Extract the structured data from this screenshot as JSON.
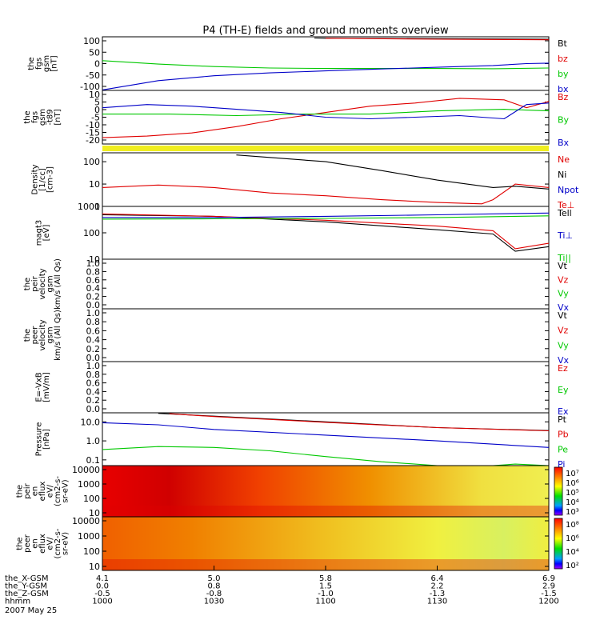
{
  "title": "P4 (TH-E) fields and ground moments overview",
  "date": "2007 May 25",
  "colors": {
    "black": "#000000",
    "red": "#e00000",
    "green": "#00c800",
    "blue": "#0000c8",
    "yellow": "#f0ee20",
    "axis": "#000000"
  },
  "chart_data": [
    {
      "type": "line",
      "panel": "fgs_gsm",
      "ylabel": [
        "the",
        "fgs",
        "gsm",
        "[nT]"
      ],
      "yticks": [
        "100",
        "50",
        "0",
        "-50",
        "-100"
      ],
      "ylim": [
        -110,
        110
      ],
      "series": [
        {
          "name": "Bt",
          "color": "black",
          "x": [
            10.95,
            11.0,
            11.5,
            12.0
          ],
          "y": [
            105,
            104,
            102,
            100
          ]
        },
        {
          "name": "bz",
          "color": "red",
          "x": [
            11.0,
            11.5,
            12.0
          ],
          "y": [
            104,
            100,
            98
          ]
        },
        {
          "name": "by",
          "color": "green",
          "x": [
            10.0,
            10.25,
            10.5,
            10.75,
            11.0,
            11.25,
            11.5,
            11.75,
            12.0
          ],
          "y": [
            12,
            -2,
            -12,
            -18,
            -20,
            -20,
            -20,
            -21,
            -18
          ]
        },
        {
          "name": "bx",
          "color": "blue",
          "x": [
            10.0,
            10.25,
            10.5,
            10.75,
            11.0,
            11.25,
            11.5,
            11.75,
            11.9,
            12.0
          ],
          "y": [
            -108,
            -70,
            -50,
            -38,
            -30,
            -22,
            -15,
            -8,
            0,
            2
          ]
        }
      ],
      "legend": [
        "Bt",
        "bz",
        "by",
        "bx"
      ]
    },
    {
      "type": "line",
      "panel": "fgs_gsm_dsl",
      "ylabel": [
        "the",
        "fgs",
        "gsm",
        "-t89",
        "[nT]"
      ],
      "yticks": [
        "10",
        "5",
        "0",
        "-5",
        "-10",
        "-15",
        "-20"
      ],
      "ylim": [
        -22,
        12
      ],
      "series": [
        {
          "name": "Bz",
          "color": "red",
          "x": [
            10.0,
            10.2,
            10.4,
            10.6,
            10.8,
            11.0,
            11.2,
            11.4,
            11.6,
            11.8,
            11.9,
            12.0
          ],
          "y": [
            -18,
            -17,
            -15,
            -11,
            -6,
            -2,
            2,
            4,
            7,
            6,
            1,
            5
          ]
        },
        {
          "name": "By",
          "color": "green",
          "x": [
            10.0,
            10.3,
            10.6,
            10.9,
            11.2,
            11.5,
            11.8,
            12.0
          ],
          "y": [
            -3,
            -3,
            -4,
            -3,
            -3,
            -1,
            0,
            -1
          ]
        },
        {
          "name": "Bx",
          "color": "blue",
          "x": [
            10.0,
            10.2,
            10.4,
            10.6,
            10.8,
            11.0,
            11.2,
            11.4,
            11.6,
            11.8,
            11.9,
            12.0
          ],
          "y": [
            1,
            3,
            2,
            0,
            -2,
            -5,
            -6,
            -5,
            -4,
            -6,
            3,
            4
          ]
        }
      ],
      "legend": [
        "Bz",
        "By",
        "Bx"
      ]
    },
    {
      "type": "line",
      "panel": "density",
      "ylabel": [
        "Density",
        "[1/cc]",
        "[cm-3]"
      ],
      "yticks": [
        "100",
        "10",
        "1"
      ],
      "ylim": [
        1,
        250
      ],
      "yscale": "log",
      "series": [
        {
          "name": "Ne",
          "color": "red",
          "x": [
            10.0,
            10.25,
            10.5,
            10.75,
            11.0,
            11.25,
            11.5,
            11.7,
            11.75,
            11.85,
            12.0
          ],
          "y": [
            7,
            9,
            7,
            4,
            3,
            2,
            1.5,
            1.3,
            2,
            10,
            7
          ]
        },
        {
          "name": "Ni",
          "color": "black",
          "x": [
            10.6,
            11.0,
            11.25,
            11.5,
            11.75,
            11.85,
            12.0
          ],
          "y": [
            200,
            100,
            40,
            15,
            7,
            8,
            6
          ]
        },
        {
          "name": "Npot",
          "color": "blue",
          "x": [],
          "y": []
        }
      ],
      "legend": [
        "Ne",
        "Ni",
        "Npot",
        "Te⊥"
      ]
    },
    {
      "type": "line",
      "panel": "temperature",
      "ylabel": [
        "magt3",
        "[eV]"
      ],
      "yticks": [
        "1000",
        "100",
        "10"
      ],
      "ylim": [
        10,
        1000
      ],
      "yscale": "log",
      "series": [
        {
          "name": "Te||",
          "color": "black",
          "x": [
            10.0,
            10.5,
            11.0,
            11.5,
            11.75,
            11.85,
            12.0
          ],
          "y": [
            480,
            420,
            260,
            130,
            90,
            20,
            30
          ]
        },
        {
          "name": "Te⊥",
          "color": "red",
          "x": [
            10.0,
            10.5,
            11.0,
            11.5,
            11.75,
            11.85,
            12.0
          ],
          "y": [
            520,
            420,
            300,
            180,
            120,
            25,
            40
          ]
        },
        {
          "name": "Ti⊥",
          "color": "blue",
          "x": [
            10.0,
            10.5,
            11.0,
            11.5,
            12.0
          ],
          "y": [
            380,
            380,
            420,
            480,
            560
          ]
        },
        {
          "name": "Ti||",
          "color": "green",
          "x": [
            10.0,
            10.5,
            11.0,
            11.5,
            12.0
          ],
          "y": [
            330,
            340,
            350,
            380,
            440
          ]
        }
      ],
      "legend": [
        "Tell",
        "Ti⊥",
        "Ti||"
      ]
    },
    {
      "type": "line",
      "panel": "peir_velocity",
      "ylabel": [
        "the",
        "peir",
        "velocity",
        "gsm",
        "km/s (All Qs)"
      ],
      "yticks": [
        "1.0",
        "0.8",
        "0.6",
        "0.4",
        "0.2",
        "0.0"
      ],
      "ylim": [
        0,
        1
      ],
      "series": [],
      "legend": [
        "Vt",
        "Vz",
        "Vy",
        "Vx"
      ]
    },
    {
      "type": "line",
      "panel": "peer_velocity",
      "ylabel": [
        "the",
        "peer",
        "velocity",
        "gsm",
        "km/s (All Qs)"
      ],
      "yticks": [
        "1.0",
        "0.8",
        "0.6",
        "0.4",
        "0.2",
        "0.0"
      ],
      "ylim": [
        0,
        1
      ],
      "series": [],
      "legend": [
        "Vt",
        "Vz",
        "Vy",
        "Vx"
      ]
    },
    {
      "type": "line",
      "panel": "efield",
      "ylabel": [
        "E=-VxB",
        "[mV/m]"
      ],
      "yticks": [
        "1.0",
        "0.8",
        "0.6",
        "0.4",
        "0.2",
        "0.0"
      ],
      "ylim": [
        0,
        1
      ],
      "series": [],
      "legend": [
        "Ez",
        "Ey",
        "Ex"
      ]
    },
    {
      "type": "line",
      "panel": "pressure",
      "ylabel": [
        "Pressure",
        "[nPa]"
      ],
      "yticks": [
        "10.0",
        "1.0",
        "0.1"
      ],
      "ylim": [
        0.05,
        30
      ],
      "yscale": "log",
      "series": [
        {
          "name": "Pt",
          "color": "black",
          "x": [
            10.25,
            10.5,
            11.0,
            11.5,
            12.0
          ],
          "y": [
            28,
            20,
            10,
            5,
            3.5
          ]
        },
        {
          "name": "Pb",
          "color": "red",
          "x": [
            10.3,
            10.5,
            11.0,
            11.5,
            12.0
          ],
          "y": [
            27,
            19,
            9.5,
            5,
            3.4
          ]
        },
        {
          "name": "Pe",
          "color": "green",
          "x": [
            10.0,
            10.25,
            10.5,
            10.75,
            11.0,
            11.25,
            11.5,
            11.75,
            11.85,
            12.0
          ],
          "y": [
            0.35,
            0.5,
            0.45,
            0.3,
            0.15,
            0.08,
            0.05,
            0.04,
            0.06,
            0.05
          ]
        },
        {
          "name": "Pi",
          "color": "blue",
          "x": [
            10.0,
            10.25,
            10.5,
            11.0,
            11.5,
            12.0
          ],
          "y": [
            9,
            7,
            4,
            2,
            1,
            0.45
          ]
        }
      ],
      "legend": [
        "Pt",
        "Pb",
        "Pe",
        "Pi"
      ]
    },
    {
      "type": "heatmap",
      "panel": "peir_en_eflux",
      "ylabel": [
        "the",
        "peir",
        "en",
        "eflux",
        "eV/",
        "(cm2-s-",
        "sr-eV)"
      ],
      "yticks": [
        "10000",
        "1000",
        "100",
        "10"
      ],
      "colorbar_ticks": [
        "10⁷",
        "10⁶",
        "10⁵",
        "10⁴",
        "10³"
      ]
    },
    {
      "type": "heatmap",
      "panel": "peer_en_eflux",
      "ylabel": [
        "the",
        "peer",
        "en",
        "eflux",
        "eV/",
        "(cm2-s-",
        "sr-eV)"
      ],
      "yticks": [
        "10000",
        "1000",
        "100",
        "10"
      ],
      "colorbar_ticks": [
        "10⁸",
        "10⁶",
        "10⁴",
        "10²"
      ]
    }
  ],
  "xaxis": {
    "rows": [
      {
        "label": "the_X-GSM",
        "values": [
          "4.1",
          "5.0",
          "5.8",
          "6.4",
          "6.9"
        ]
      },
      {
        "label": "the_Y-GSM",
        "values": [
          "0.0",
          "0.8",
          "1.5",
          "2.2",
          "2.9"
        ]
      },
      {
        "label": "the_Z-GSM",
        "values": [
          "-0.5",
          "-0.8",
          "-1.0",
          "-1.3",
          "-1.5"
        ]
      },
      {
        "label": "hhmm",
        "values": [
          "1000",
          "1030",
          "1100",
          "1130",
          "1200"
        ]
      }
    ]
  }
}
